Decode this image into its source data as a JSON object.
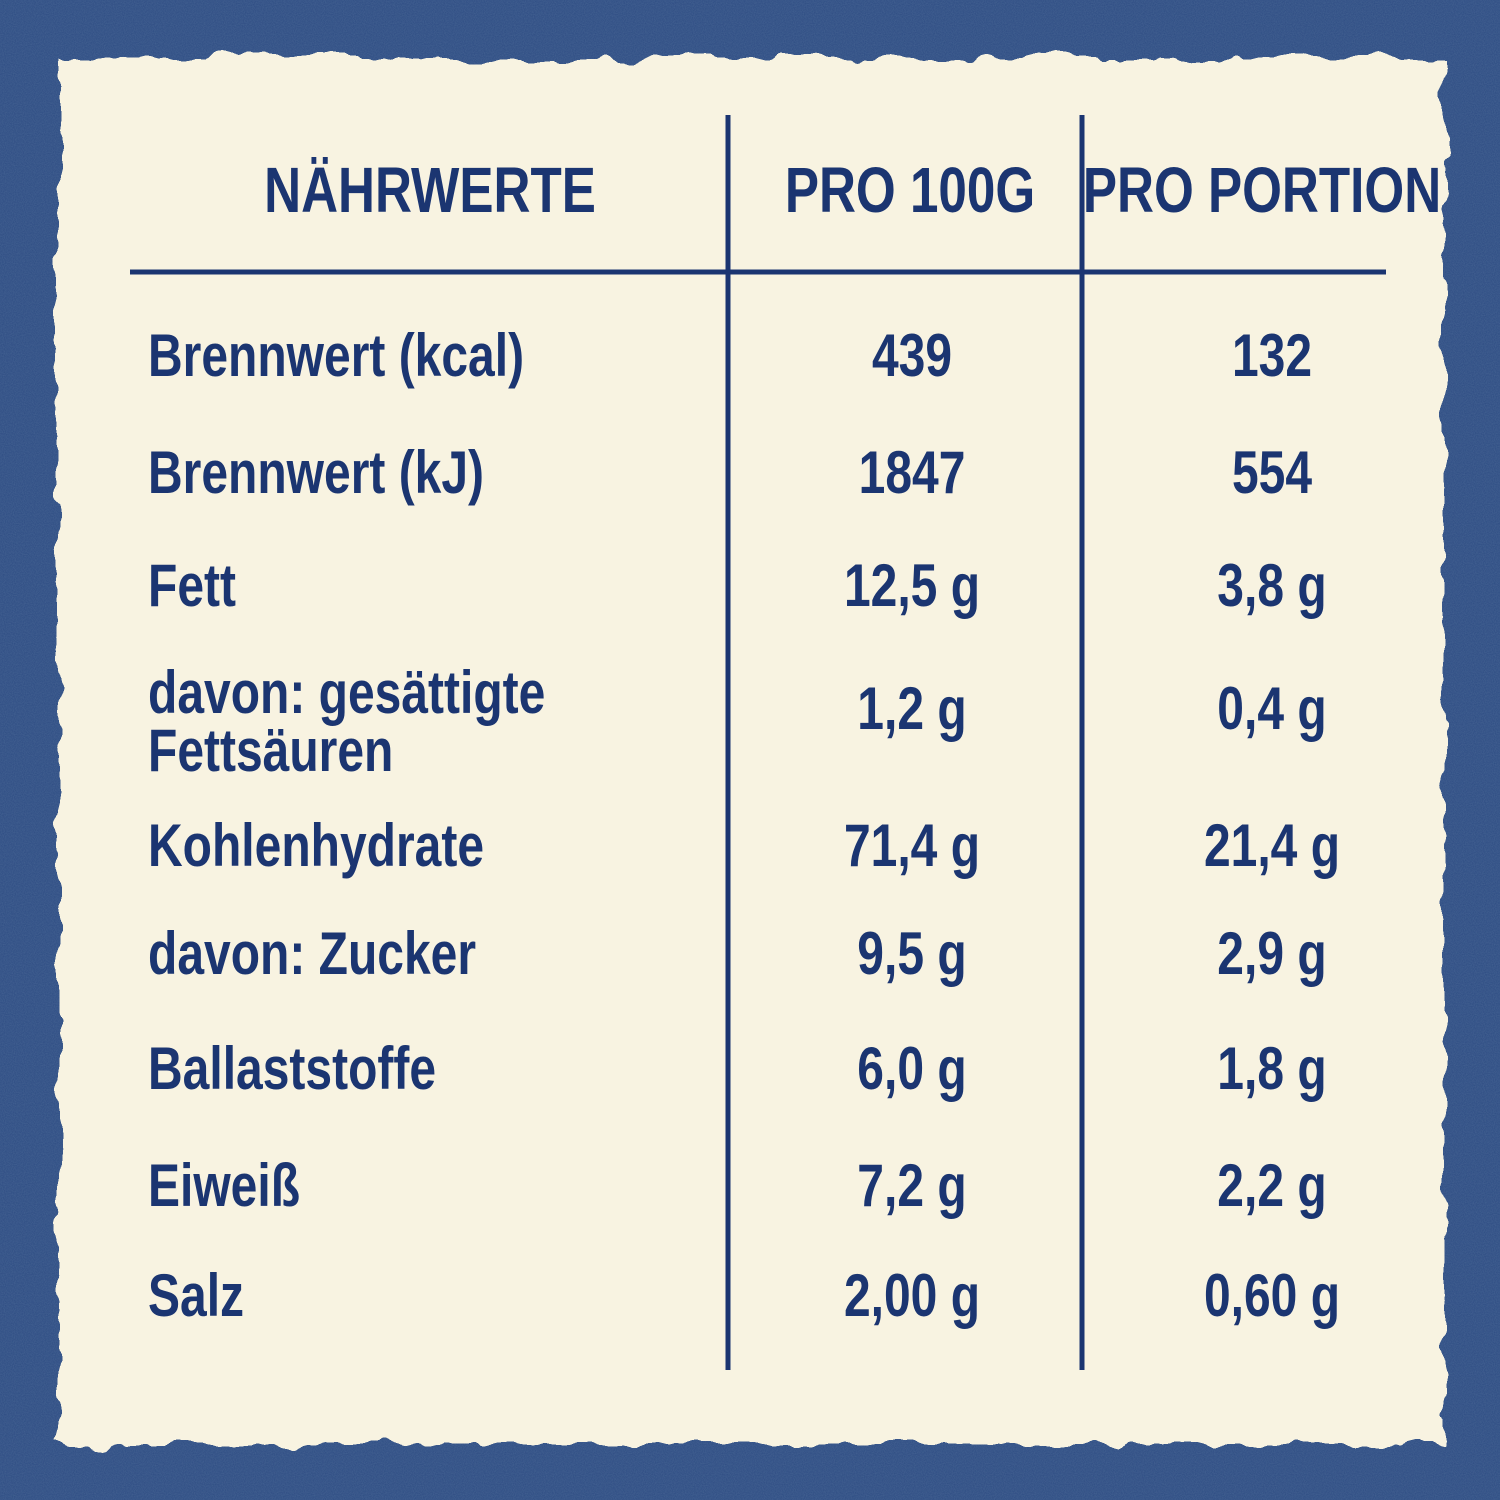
{
  "table": {
    "header": [
      "NÄHRWERTE",
      "PRO 100G",
      "PRO PORTION"
    ],
    "rows": [
      [
        "Brennwert (kcal)",
        "439",
        "132"
      ],
      [
        "Brennwert (kJ)",
        "1847",
        "554"
      ],
      [
        "Fett",
        "12,5 g",
        "3,8 g"
      ],
      [
        [
          "davon: gesättigte",
          "Fettsäuren"
        ],
        "1,2 g",
        "0,4 g"
      ],
      [
        "Kohlenhydrate",
        "71,4 g",
        "21,4 g"
      ],
      [
        "davon: Zucker",
        "9,5 g",
        "2,9 g"
      ],
      [
        "Ballaststoffe",
        "6,0 g",
        "1,8 g"
      ],
      [
        "Eiweiß",
        "7,2 g",
        "2,2 g"
      ],
      [
        "Salz",
        "2,00 g",
        "0,60 g"
      ]
    ]
  }
}
